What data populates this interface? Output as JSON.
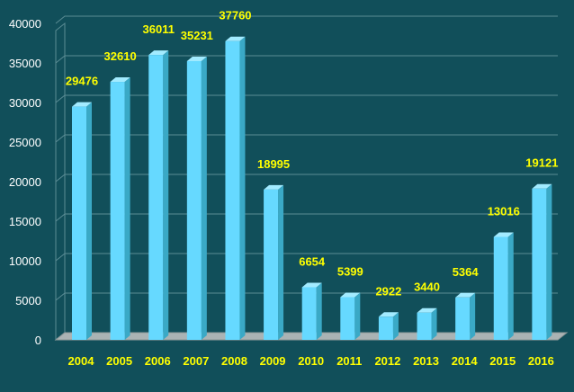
{
  "chart_data": {
    "type": "bar",
    "title": "",
    "xlabel": "",
    "ylabel": "",
    "categories": [
      "2004",
      "2005",
      "2006",
      "2007",
      "2008",
      "2009",
      "2010",
      "2011",
      "2012",
      "2013",
      "2014",
      "2015",
      "2016"
    ],
    "values": [
      29476,
      32610,
      36011,
      35231,
      37760,
      18995,
      6654,
      5399,
      2922,
      3440,
      5364,
      13016,
      19121
    ],
    "ylim": [
      0,
      40000
    ],
    "yticks": [
      0,
      5000,
      10000,
      15000,
      20000,
      25000,
      30000,
      35000,
      40000
    ],
    "grid": true,
    "legend": "none",
    "style": "3d-column",
    "colors": {
      "background": "#114f5a",
      "bar_front": "#66d9ff",
      "bar_side": "#3aa9c6",
      "bar_top": "#a3ebff",
      "floor": "#aab3b4",
      "grid": "#5b8c94",
      "data_label": "#ffff00",
      "axis_text": "#ffffff",
      "category_text": "#ffff00"
    }
  }
}
